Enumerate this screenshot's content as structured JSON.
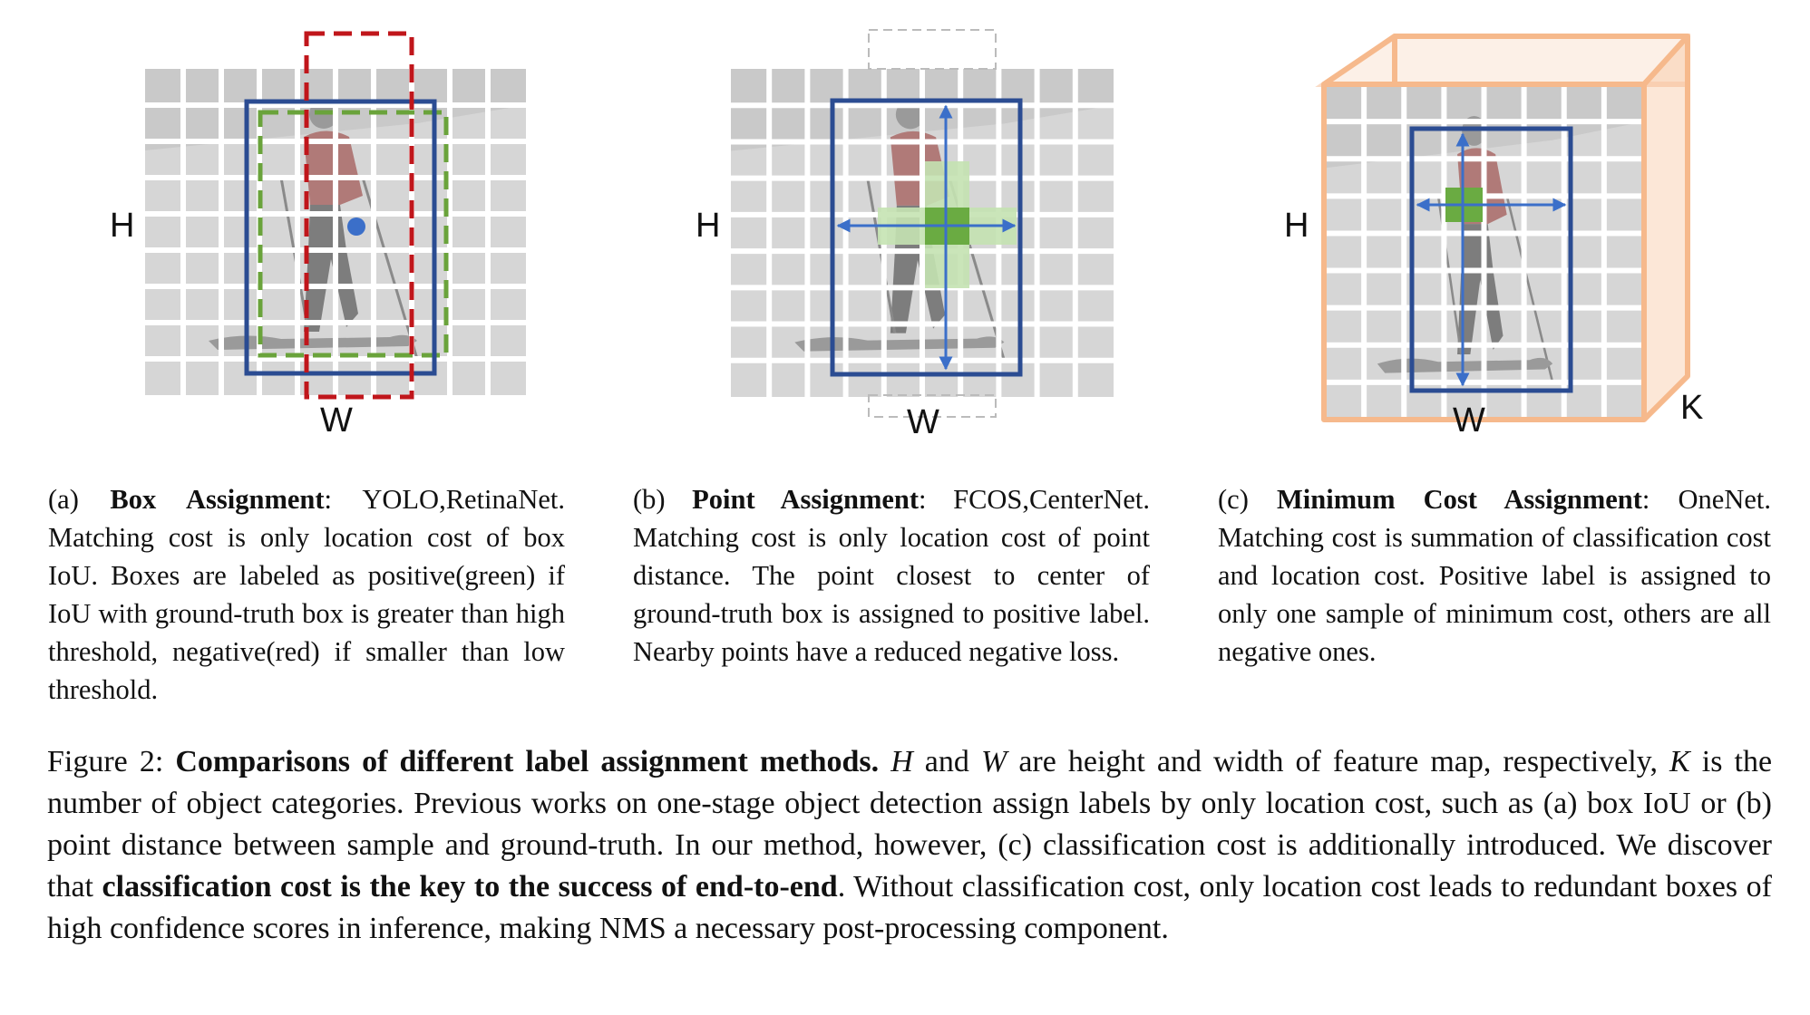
{
  "panels": [
    {
      "h_label": "H",
      "w_label": "W"
    },
    {
      "h_label": "H",
      "w_label": "W"
    },
    {
      "h_label": "H",
      "w_label": "W",
      "k_label": "K"
    }
  ],
  "colors": {
    "gt_box": "#2b4c92",
    "positive_box": "#6aa33b",
    "negative_box": "#c0161b",
    "center_dot": "#3b6fc9",
    "positive_cell": "#6aab42",
    "nearby_cell": "#c5e3b2",
    "arrow": "#3b6fc9",
    "cube": "#f6b98c",
    "grid_line": "#ffffff",
    "image_bg": "#d8d8d8"
  },
  "captions": {
    "a": {
      "prefix": "(a) ",
      "title": "Box Assignment",
      "methods": ": YOLO,RetinaNet.",
      "body": " Matching cost is only location cost of box IoU. Boxes are labeled as posi­tive(green) if IoU with ground-truth box is greater than high threshold, nega­tive(red) if smaller than low threshold."
    },
    "b": {
      "prefix": "(b) ",
      "title": "Point Assignment",
      "methods": ": FCOS,CenterNet.",
      "body": " Matching cost is only location cost of point distance. The point closest to center of ground-truth box is assigned to posi­tive label. Nearby points have a reduced negative loss."
    },
    "c": {
      "prefix": "(c) ",
      "title": "Minimum Cost Assignment",
      "methods": ": OneNet.",
      "body": " Matching cost is summation of classification cost and location cost. Positive label is as­signed to only one sample of minimum cost, others are all negative ones."
    }
  },
  "figure_caption": {
    "label": "Figure 2: ",
    "title": "Comparisons of different label assignment methods.",
    "var_h": "H",
    "text1": " and ",
    "var_w": "W",
    "text2": " are height and width of feature map, respectively, ",
    "var_k": "K",
    "text3": " is the number of object categories. Previous works on one-stage object detection assign labels by only location cost, such as (a) box IoU or (b) point distance between sample and ground-truth. In our method, however, (c) classification cost is additionally introduced. We discover that ",
    "emphasis": "classification cost is the key to the success of end-to-end",
    "text4": ". Without classification cost, only location cost leads to redundant boxes of high confidence scores in inference, making NMS a necessary post-processing component."
  }
}
